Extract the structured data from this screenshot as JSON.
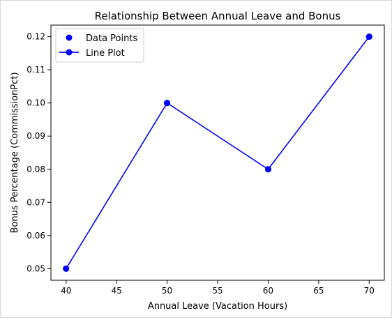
{
  "chart_data": {
    "type": "line",
    "title": "Relationship Between Annual Leave and Bonus",
    "xlabel": "Annual Leave (Vacation Hours)",
    "ylabel": "Bonus Percentage (CommissionPct)",
    "xlim": [
      38.5,
      71.5
    ],
    "ylim": [
      0.0465,
      0.1235
    ],
    "xticks": [
      40,
      45,
      50,
      55,
      60,
      65,
      70
    ],
    "yticks": [
      0.05,
      0.06,
      0.07,
      0.08,
      0.09,
      0.1,
      0.11,
      0.12
    ],
    "xtick_labels": [
      "40",
      "45",
      "50",
      "55",
      "60",
      "65",
      "70"
    ],
    "ytick_labels": [
      "0.05",
      "0.06",
      "0.07",
      "0.08",
      "0.09",
      "0.10",
      "0.11",
      "0.12"
    ],
    "grid": false,
    "legend": {
      "placement": "top-left",
      "entries": [
        "Data Points",
        "Line Plot"
      ]
    },
    "series": [
      {
        "name": "Data Points",
        "type": "scatter",
        "x": [
          40,
          50,
          60,
          70
        ],
        "y": [
          0.05,
          0.1,
          0.08,
          0.12
        ],
        "color": "#0000ff"
      },
      {
        "name": "Line Plot",
        "type": "line",
        "x": [
          40,
          50,
          60,
          70
        ],
        "y": [
          0.05,
          0.1,
          0.08,
          0.12
        ],
        "color": "#0000ff"
      }
    ]
  }
}
